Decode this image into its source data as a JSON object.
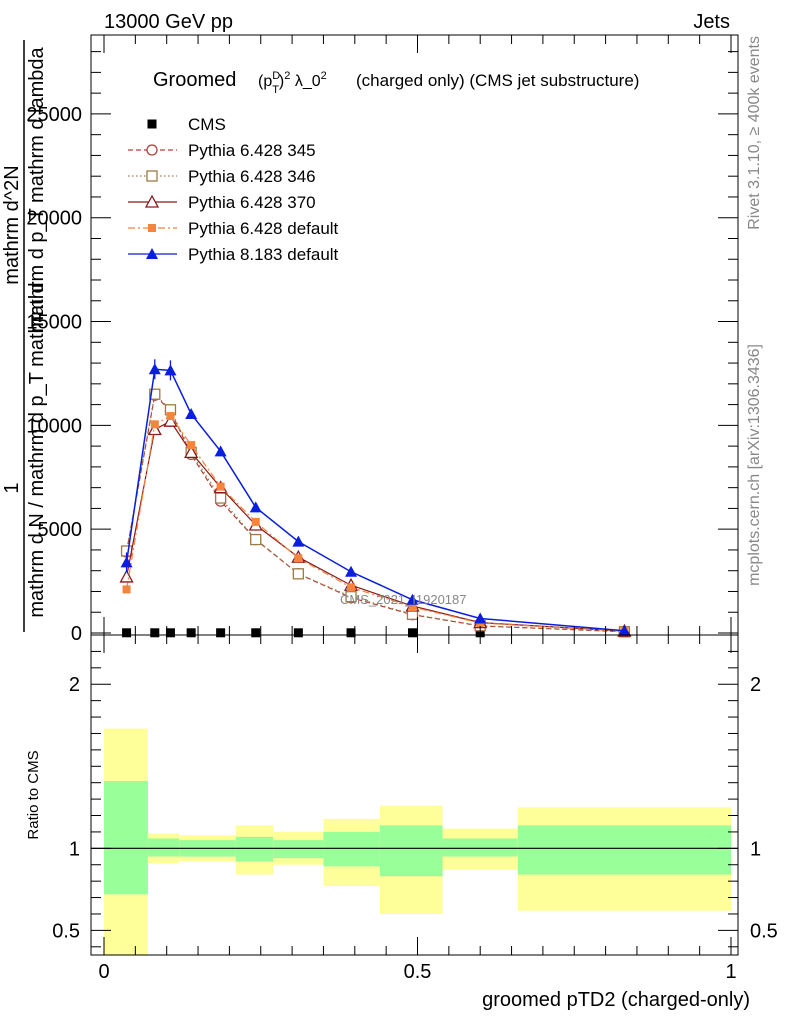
{
  "header": {
    "left": "13000 GeV pp",
    "right": "Jets"
  },
  "side_labels": {
    "rivet": "Rivet 3.1.10, ≥ 400k events",
    "mcplots": "mcplots.cern.ch [arXiv:1306.3436]"
  },
  "watermark": "CMS_2021_I1920187",
  "colors": {
    "cms": "#000000",
    "p345": "#b0403a",
    "p346": "#9c7c42",
    "p370": "#8b1a1a",
    "p6def": "#f5843c",
    "p8def": "#0a1ee0",
    "band_outer": "#ffff99",
    "band_inner": "#99ff99"
  },
  "chart_data": [
    {
      "type": "line",
      "title_main": "Groomed",
      "title_formula": "(p_T^D)^2 λ_0^2",
      "title_rest": "(charged only) (CMS jet substructure)",
      "ylabel_lines": [
        "1",
        "mathrm d N / mathrm d p_T mathrm d",
        "mathrm d^2N",
        "mathrm d p_T mathrm d lambda"
      ],
      "xlim": [
        0,
        1
      ],
      "ylim": [
        0,
        28800
      ],
      "y_ticks": [
        0,
        5000,
        10000,
        15000,
        20000,
        25000
      ],
      "y_tick_labels": [
        "0",
        "5000",
        "10000",
        "15000",
        "20000",
        "25000"
      ],
      "x": [
        0.036,
        0.081,
        0.106,
        0.139,
        0.186,
        0.242,
        0.31,
        0.394,
        0.492,
        0.6,
        0.83
      ],
      "series": [
        {
          "name": "CMS",
          "key": "cms",
          "marker": "square_filled",
          "line": "none",
          "values": [
            10,
            10,
            10,
            10,
            10,
            10,
            10,
            10,
            10,
            10,
            10
          ]
        },
        {
          "name": "Pythia 6.428 345",
          "key": "p345",
          "marker": "circle_open",
          "line": "dashed",
          "values": [
            3900,
            11450,
            10700,
            8600,
            6350,
            4500,
            2850,
            1700,
            880,
            340,
            60
          ]
        },
        {
          "name": "Pythia 6.428 346",
          "key": "p346",
          "marker": "square_open",
          "line": "dotted",
          "values": [
            3950,
            11500,
            10750,
            8700,
            6500,
            4500,
            2850,
            1750,
            900,
            350,
            60
          ]
        },
        {
          "name": "Pythia 6.428 370",
          "key": "p370",
          "marker": "triangle_open",
          "line": "solid",
          "values": [
            2700,
            9800,
            10200,
            8700,
            7000,
            5200,
            3650,
            2300,
            1300,
            500,
            90
          ]
        },
        {
          "name": "Pythia 6.428 default",
          "key": "p6def",
          "marker": "square_filled_small",
          "line": "dashdot",
          "values": [
            2100,
            10050,
            10450,
            9050,
            7050,
            5350,
            3600,
            2200,
            1250,
            480,
            80
          ]
        },
        {
          "name": "Pythia 8.183 default",
          "key": "p8def",
          "marker": "triangle_filled",
          "line": "solid",
          "values": [
            3400,
            12700,
            12650,
            10550,
            8750,
            6050,
            4400,
            2950,
            1600,
            700,
            110
          ]
        }
      ]
    },
    {
      "type": "area",
      "ylabel": "Ratio to CMS",
      "xlabel": "groomed pTD2 (charged-only)",
      "xlim": [
        0,
        1
      ],
      "ylim": [
        0.35,
        2.3
      ],
      "x_ticks": [
        0,
        0.5,
        1
      ],
      "x_tick_labels": [
        "0",
        "0.5",
        "1"
      ],
      "y_ticks": [
        0.5,
        1,
        2
      ],
      "y_tick_labels": [
        "0.5",
        "1",
        "2"
      ],
      "bins": [
        {
          "lo": 0.0,
          "hi": 0.07,
          "outer": [
            0.35,
            1.73
          ],
          "inner": [
            0.72,
            1.41
          ]
        },
        {
          "lo": 0.07,
          "hi": 0.12,
          "outer": [
            0.91,
            1.09
          ],
          "inner": [
            0.95,
            1.06
          ]
        },
        {
          "lo": 0.12,
          "hi": 0.21,
          "outer": [
            0.92,
            1.08
          ],
          "inner": [
            0.95,
            1.05
          ]
        },
        {
          "lo": 0.21,
          "hi": 0.27,
          "outer": [
            0.84,
            1.14
          ],
          "inner": [
            0.92,
            1.07
          ]
        },
        {
          "lo": 0.27,
          "hi": 0.35,
          "outer": [
            0.9,
            1.1
          ],
          "inner": [
            0.94,
            1.05
          ]
        },
        {
          "lo": 0.35,
          "hi": 0.44,
          "outer": [
            0.77,
            1.18
          ],
          "inner": [
            0.89,
            1.1
          ]
        },
        {
          "lo": 0.44,
          "hi": 0.54,
          "outer": [
            0.6,
            1.26
          ],
          "inner": [
            0.83,
            1.14
          ]
        },
        {
          "lo": 0.54,
          "hi": 0.66,
          "outer": [
            0.87,
            1.12
          ],
          "inner": [
            0.95,
            1.06
          ]
        },
        {
          "lo": 0.66,
          "hi": 1.0,
          "outer": [
            0.62,
            1.25
          ],
          "inner": [
            0.84,
            1.14
          ]
        }
      ],
      "reference": 1
    }
  ]
}
